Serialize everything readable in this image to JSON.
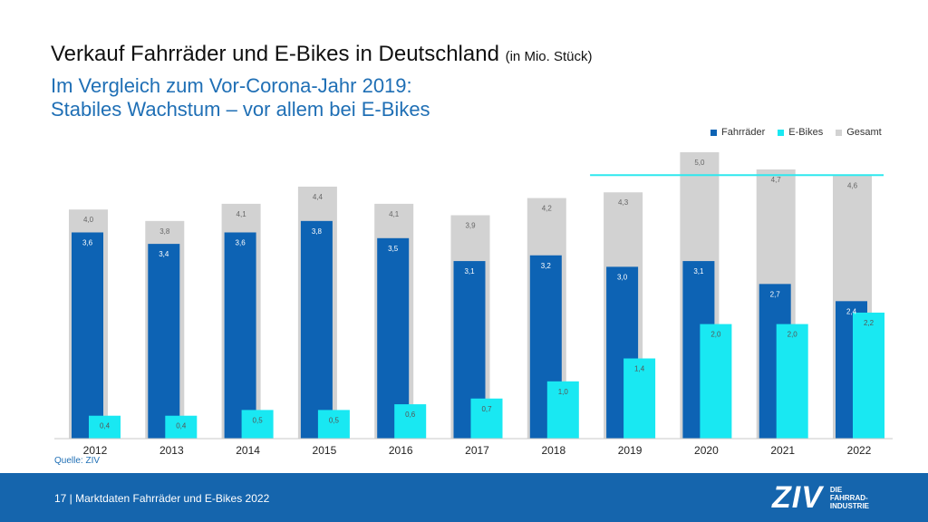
{
  "header": {
    "title": "Verkauf Fahrräder und E-Bikes in Deutschland",
    "unit": "(in Mio. Stück)",
    "subtitle_line1": "Im Vergleich zum Vor-Corona-Jahr 2019:",
    "subtitle_line2": "Stabiles Wachstum – vor allem bei E-Bikes"
  },
  "colors": {
    "fahrraeder": "#0d63b4",
    "ebikes": "#19e8f2",
    "gesamt": "#d2d2d2",
    "reference_line": "#2ee8ee"
  },
  "chart_data": {
    "type": "bar",
    "categories": [
      "2012",
      "2013",
      "2014",
      "2015",
      "2016",
      "2017",
      "2018",
      "2019",
      "2020",
      "2021",
      "2022"
    ],
    "series": [
      {
        "name": "Fahrräder",
        "values": [
          3.6,
          3.4,
          3.6,
          3.8,
          3.5,
          3.1,
          3.2,
          3.0,
          3.1,
          2.7,
          2.4
        ],
        "labels": [
          "3,6",
          "3,4",
          "3,6",
          "3,8",
          "3,5",
          "3,1",
          "3,2",
          "3,0",
          "3,1",
          "2,7",
          "2,4"
        ]
      },
      {
        "name": "E-Bikes",
        "values": [
          0.4,
          0.4,
          0.5,
          0.5,
          0.6,
          0.7,
          1.0,
          1.4,
          2.0,
          2.0,
          2.2
        ],
        "labels": [
          "0,4",
          "0,4",
          "0,5",
          "0,5",
          "0,6",
          "0,7",
          "1,0",
          "1,4",
          "2,0",
          "2,0",
          "2,2"
        ]
      },
      {
        "name": "Gesamt",
        "values": [
          4.0,
          3.8,
          4.1,
          4.4,
          4.1,
          3.9,
          4.2,
          4.3,
          5.0,
          4.7,
          4.6
        ],
        "labels": [
          "4,0",
          "3,8",
          "4,1",
          "4,4",
          "4,1",
          "3,9",
          "4,2",
          "4,3",
          "5,0",
          "4,7",
          "4,6"
        ]
      }
    ],
    "reference_line": {
      "value": 4.6,
      "from": "2019",
      "to": "2022"
    },
    "ylim": [
      0,
      5.0
    ],
    "legend_position": "top-right"
  },
  "source": "Quelle: ZIV",
  "footer": {
    "text": "17 | Marktdaten Fahrräder und E-Bikes 2022",
    "logo": "ZIV",
    "logo_sub1": "DIE",
    "logo_sub2": "FAHRRAD-",
    "logo_sub3": "INDUSTRIE"
  }
}
